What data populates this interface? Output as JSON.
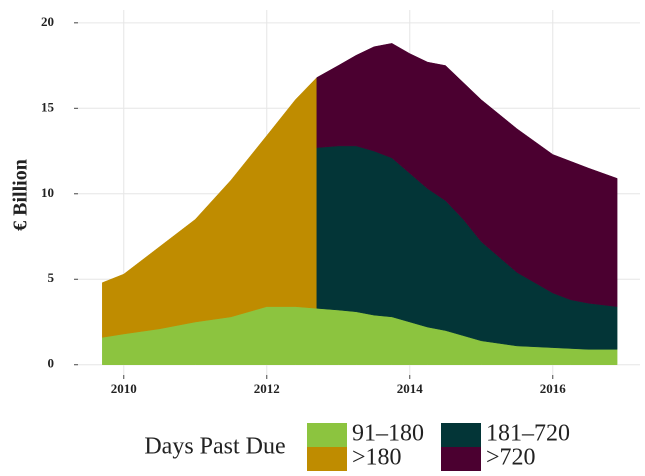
{
  "chart_data": {
    "type": "stacked-area",
    "y_label": "€ Billion",
    "legend_title": "Days Past Due",
    "x": [
      2009.7,
      2010,
      2010.5,
      2011,
      2011.5,
      2012,
      2012.4,
      2012.7,
      2012.7,
      2013,
      2013.25,
      2013.5,
      2013.75,
      2014,
      2014.25,
      2014.5,
      2014.75,
      2015,
      2015.5,
      2016,
      2016.25,
      2016.5,
      2016.9
    ],
    "series": [
      {
        "name": "91–180",
        "color": "#8cc43f",
        "values": [
          1.6,
          1.8,
          2.1,
          2.5,
          2.8,
          3.4,
          3.4,
          3.3,
          3.3,
          3.2,
          3.1,
          2.9,
          2.8,
          2.5,
          2.2,
          2.0,
          1.7,
          1.4,
          1.1,
          1.0,
          0.95,
          0.9,
          0.9
        ]
      },
      {
        "name": ">180",
        "color": "#bf8c00",
        "values": [
          3.2,
          3.5,
          4.8,
          6.0,
          8.0,
          10.0,
          12.1,
          13.5,
          null,
          null,
          null,
          null,
          null,
          null,
          null,
          null,
          null,
          null,
          null,
          null,
          null,
          null,
          null
        ]
      },
      {
        "name": "181–720",
        "color": "#033537",
        "values": [
          null,
          null,
          null,
          null,
          null,
          null,
          null,
          null,
          9.4,
          9.6,
          9.7,
          9.6,
          9.3,
          8.7,
          8.1,
          7.6,
          6.8,
          5.8,
          4.3,
          3.2,
          2.85,
          2.7,
          2.5
        ]
      },
      {
        "name": ">720",
        "color": "#4b0030",
        "values": [
          null,
          null,
          null,
          null,
          null,
          null,
          null,
          null,
          4.1,
          4.7,
          5.3,
          6.1,
          6.7,
          7.0,
          7.4,
          7.9,
          8.0,
          8.3,
          8.4,
          8.1,
          8.1,
          7.9,
          7.5
        ]
      }
    ],
    "xlim": [
      2009.36,
      2017.22
    ],
    "xticks": [
      2010,
      2012,
      2014,
      2016
    ],
    "ylim": [
      -0.6,
      20.75
    ],
    "yticks": [
      0,
      5,
      10,
      15,
      20
    ],
    "grid": true
  }
}
